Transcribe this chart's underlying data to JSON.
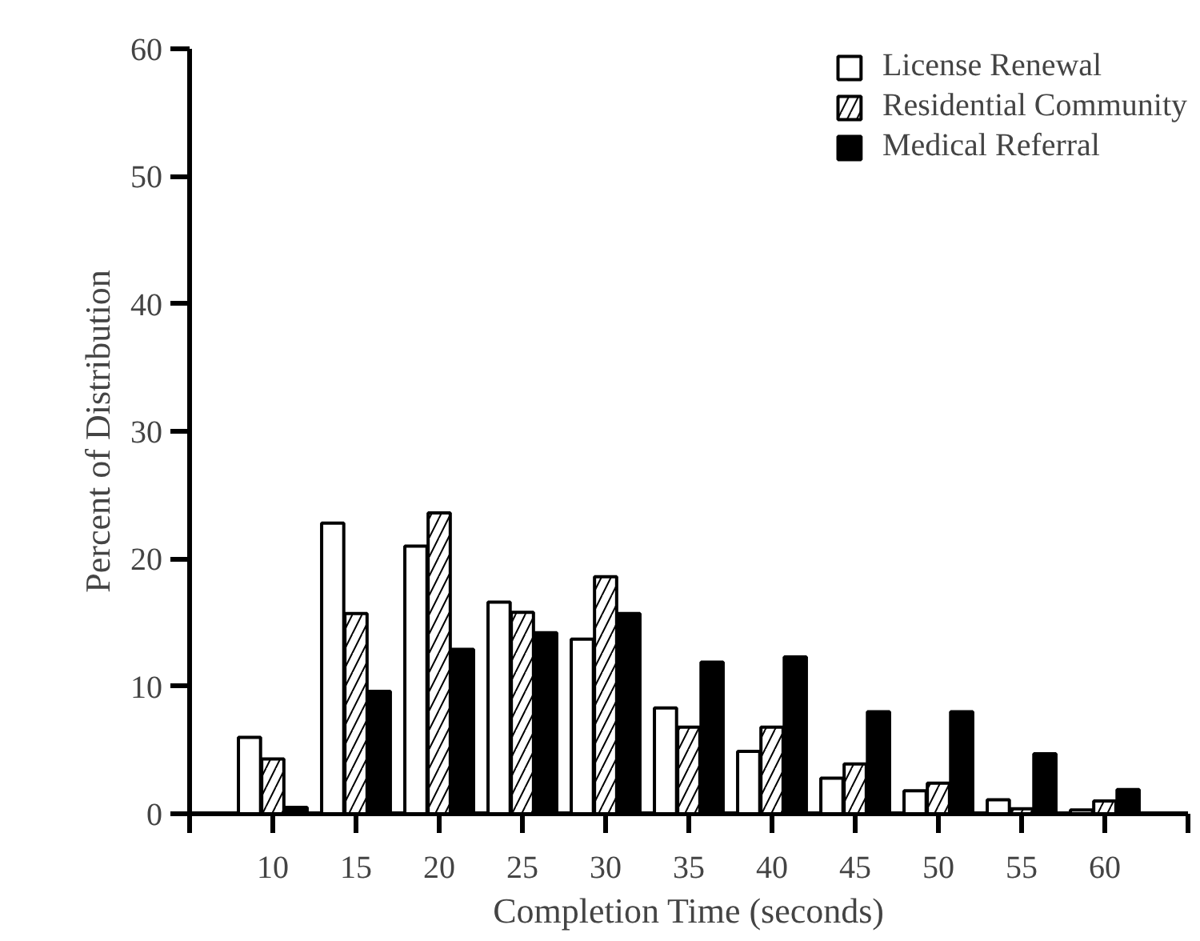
{
  "chart_data": {
    "type": "bar",
    "xlabel": "Completion Time (seconds)",
    "ylabel": "Percent of Distribution",
    "x": [
      10,
      15,
      20,
      25,
      30,
      35,
      40,
      45,
      50,
      55,
      60
    ],
    "series": [
      {
        "name": "License Renewal",
        "color": "#ffffff",
        "values": [
          6,
          22.8,
          21,
          16.6,
          13.7,
          8.3,
          4.9,
          2.8,
          1.8,
          1.1,
          0.3
        ]
      },
      {
        "name": "Residential Community",
        "color": "#ffffff",
        "values": [
          4.3,
          15.7,
          23.6,
          15.8,
          18.6,
          6.8,
          6.8,
          3.9,
          2.4,
          0.4,
          1.0
        ]
      },
      {
        "name": "Medical Referral",
        "color": "#000000",
        "values": [
          0.5,
          9.6,
          12.9,
          14.2,
          15.7,
          11.9,
          12.3,
          8.0,
          8.0,
          4.7,
          1.9
        ]
      }
    ],
    "xlim": [
      5,
      65
    ],
    "xticks": [
      {
        "value": 5,
        "label": null
      },
      10,
      15,
      20,
      25,
      30,
      35,
      40,
      45,
      50,
      55,
      60,
      {
        "value": 65,
        "label": null
      }
    ],
    "ylim": [
      0,
      60
    ],
    "yticks": [
      0,
      10,
      20,
      30,
      40,
      50,
      60
    ],
    "grid": false,
    "legend": "top right"
  }
}
